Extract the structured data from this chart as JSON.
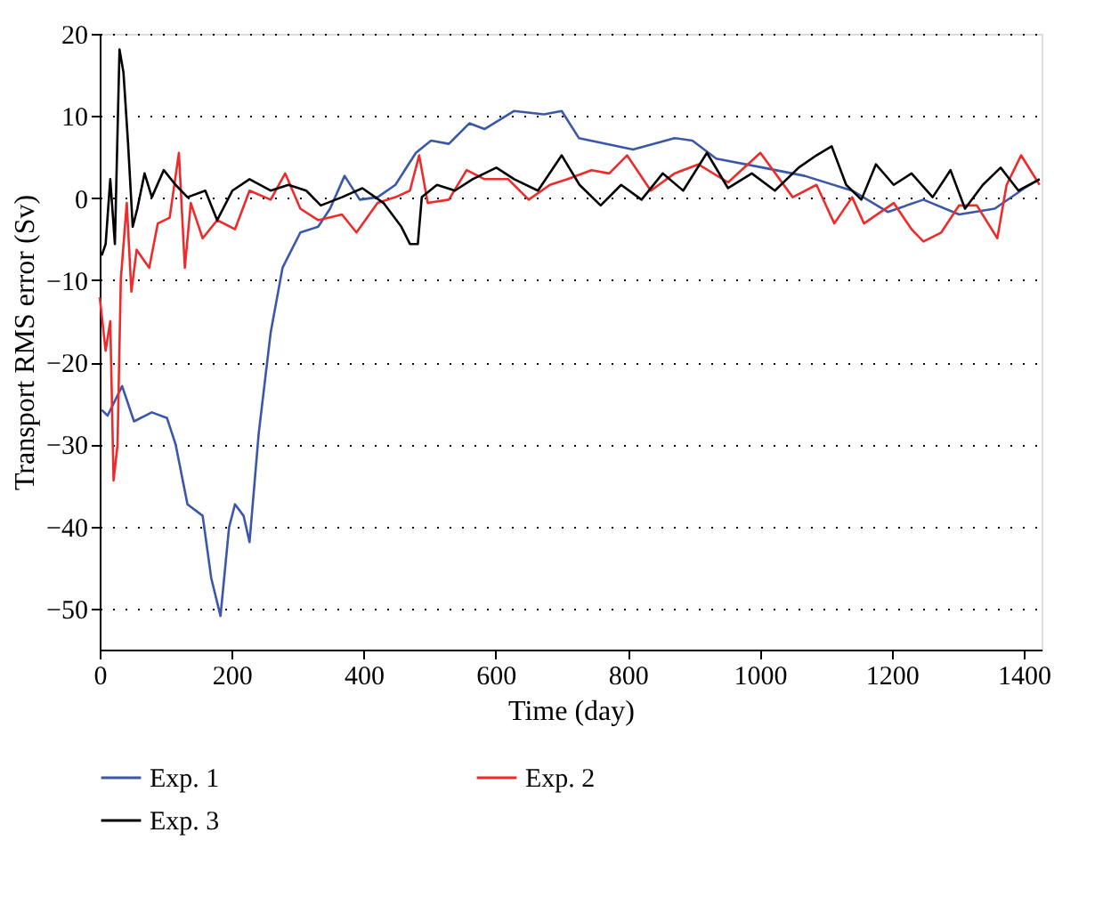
{
  "chart_data": {
    "type": "line",
    "xlabel": "Time (day)",
    "ylabel": "Transport RMS error (Sv)",
    "xlim": [
      0,
      1427
    ],
    "ylim": [
      -55,
      20
    ],
    "xticks": [
      0,
      200,
      400,
      600,
      800,
      1000,
      1200,
      1400
    ],
    "yticks": [
      -50,
      -40,
      -30,
      -20,
      -10,
      0,
      10,
      20
    ],
    "grid": "y",
    "legend": "bottom",
    "line_style": "solid",
    "marker": "none",
    "series": [
      {
        "name": "Exp. 1",
        "color": "#3a57a8",
        "x": [
          3,
          12,
          34,
          52,
          79,
          102,
          115,
          133,
          156,
          169,
          183,
          196,
          205,
          218,
          227,
          241,
          259,
          277,
          304,
          331,
          349,
          371,
          394,
          421,
          448,
          479,
          502,
          529,
          560,
          583,
          628,
          673,
          700,
          726,
          808,
          871,
          898,
          934,
          1005,
          1068,
          1140,
          1194,
          1248,
          1302,
          1356,
          1401,
          1424
        ],
        "values": [
          -25.8,
          -26.5,
          -22.9,
          -27.2,
          -26.1,
          -26.8,
          -30,
          -37.3,
          -38.7,
          -46.3,
          -50.9,
          -40.1,
          -37.3,
          -38.7,
          -41.9,
          -28.6,
          -16.4,
          -8.5,
          -4.2,
          -3.5,
          -1.3,
          2.7,
          -0.2,
          0.1,
          1.6,
          5.5,
          7,
          6.6,
          9.1,
          8.4,
          10.6,
          10.2,
          10.6,
          7.3,
          5.9,
          7.3,
          7,
          4.8,
          3.7,
          2.7,
          0.9,
          -1.7,
          -0.2,
          -2,
          -1.3,
          1.2,
          2.3
        ]
      },
      {
        "name": "Exp. 2",
        "color": "#ee2b2b",
        "x": [
          0,
          9,
          16,
          21,
          27,
          32,
          41,
          48,
          56,
          75,
          88,
          106,
          120,
          129,
          138,
          156,
          178,
          205,
          227,
          259,
          281,
          304,
          331,
          367,
          389,
          421,
          448,
          470,
          484,
          497,
          529,
          556,
          583,
          619,
          650,
          682,
          709,
          745,
          772,
          799,
          835,
          871,
          907,
          952,
          1001,
          1050,
          1086,
          1113,
          1140,
          1158,
          1203,
          1230,
          1248,
          1275,
          1302,
          1329,
          1360,
          1374,
          1396,
          1424
        ],
        "values": [
          -12.1,
          -18.6,
          -15,
          -34.4,
          -30.1,
          -9.9,
          -0.6,
          -11.4,
          -6.3,
          -8.5,
          -3.1,
          -2.4,
          5.5,
          -8.5,
          -0.6,
          -4.9,
          -2.7,
          -3.8,
          0.9,
          -0.2,
          3,
          -1.3,
          -2.7,
          -2,
          -4.2,
          -0.6,
          0.1,
          0.9,
          5.2,
          -0.6,
          -0.2,
          3.4,
          2.3,
          2.3,
          -0.2,
          1.6,
          2.3,
          3.4,
          3,
          5.2,
          0.9,
          3,
          4.1,
          1.9,
          5.5,
          0.1,
          1.6,
          -3.1,
          0.1,
          -3.1,
          -0.6,
          -3.8,
          -5.3,
          -4.2,
          -0.9,
          -0.9,
          -4.9,
          1.6,
          5.2,
          1.6
        ]
      },
      {
        "name": "Exp. 3",
        "color": "#000000",
        "x": [
          3,
          9,
          16,
          23,
          30,
          36,
          43,
          50,
          57,
          68,
          79,
          97,
          115,
          133,
          160,
          178,
          201,
          227,
          259,
          286,
          313,
          335,
          367,
          398,
          430,
          457,
          470,
          482,
          488,
          511,
          538,
          565,
          601,
          628,
          664,
          700,
          727,
          759,
          790,
          821,
          853,
          884,
          920,
          952,
          988,
          1023,
          1059,
          1086,
          1109,
          1131,
          1154,
          1176,
          1203,
          1230,
          1262,
          1289,
          1311,
          1338,
          1365,
          1392,
          1424
        ],
        "values": [
          -7,
          -5.6,
          2.3,
          -5.6,
          18.1,
          15.3,
          6.6,
          -3.5,
          -1.3,
          3,
          0.1,
          3.4,
          1.6,
          0.1,
          0.9,
          -2.7,
          0.9,
          2.3,
          0.9,
          1.6,
          0.9,
          -0.9,
          0.1,
          1.2,
          -0.6,
          -3.5,
          -5.6,
          -5.6,
          0.1,
          1.6,
          0.9,
          2.3,
          3.7,
          2.3,
          0.9,
          5.2,
          1.6,
          -0.9,
          1.6,
          -0.2,
          3,
          0.9,
          5.5,
          1.2,
          3,
          0.9,
          3.7,
          5.2,
          6.3,
          1.6,
          -0.2,
          4.1,
          1.6,
          3,
          0.1,
          3.4,
          -1.3,
          1.6,
          3.7,
          0.9,
          2.3
        ]
      }
    ]
  }
}
